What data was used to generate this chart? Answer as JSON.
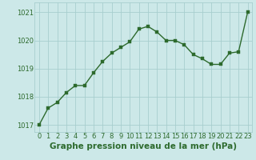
{
  "x": [
    0,
    1,
    2,
    3,
    4,
    5,
    6,
    7,
    8,
    9,
    10,
    11,
    12,
    13,
    14,
    15,
    16,
    17,
    18,
    19,
    20,
    21,
    22,
    23
  ],
  "y": [
    1017.0,
    1017.6,
    1017.8,
    1018.15,
    1018.4,
    1018.4,
    1018.85,
    1019.25,
    1019.55,
    1019.75,
    1019.95,
    1020.4,
    1020.5,
    1020.3,
    1020.0,
    1020.0,
    1019.85,
    1019.5,
    1019.35,
    1019.15,
    1019.15,
    1019.55,
    1019.6,
    1021.0
  ],
  "line_color": "#2d6a2d",
  "marker_color": "#2d6a2d",
  "bg_color": "#cce8e8",
  "grid_color": "#a8cece",
  "title": "Graphe pression niveau de la mer (hPa)",
  "ylim": [
    1016.75,
    1021.35
  ],
  "yticks": [
    1017,
    1018,
    1019,
    1020,
    1021
  ],
  "xlim": [
    -0.5,
    23.5
  ],
  "xticks": [
    0,
    1,
    2,
    3,
    4,
    5,
    6,
    7,
    8,
    9,
    10,
    11,
    12,
    13,
    14,
    15,
    16,
    17,
    18,
    19,
    20,
    21,
    22,
    23
  ],
  "title_fontsize": 7.5,
  "tick_fontsize": 6.0,
  "line_width": 1.0,
  "marker_size": 2.5
}
